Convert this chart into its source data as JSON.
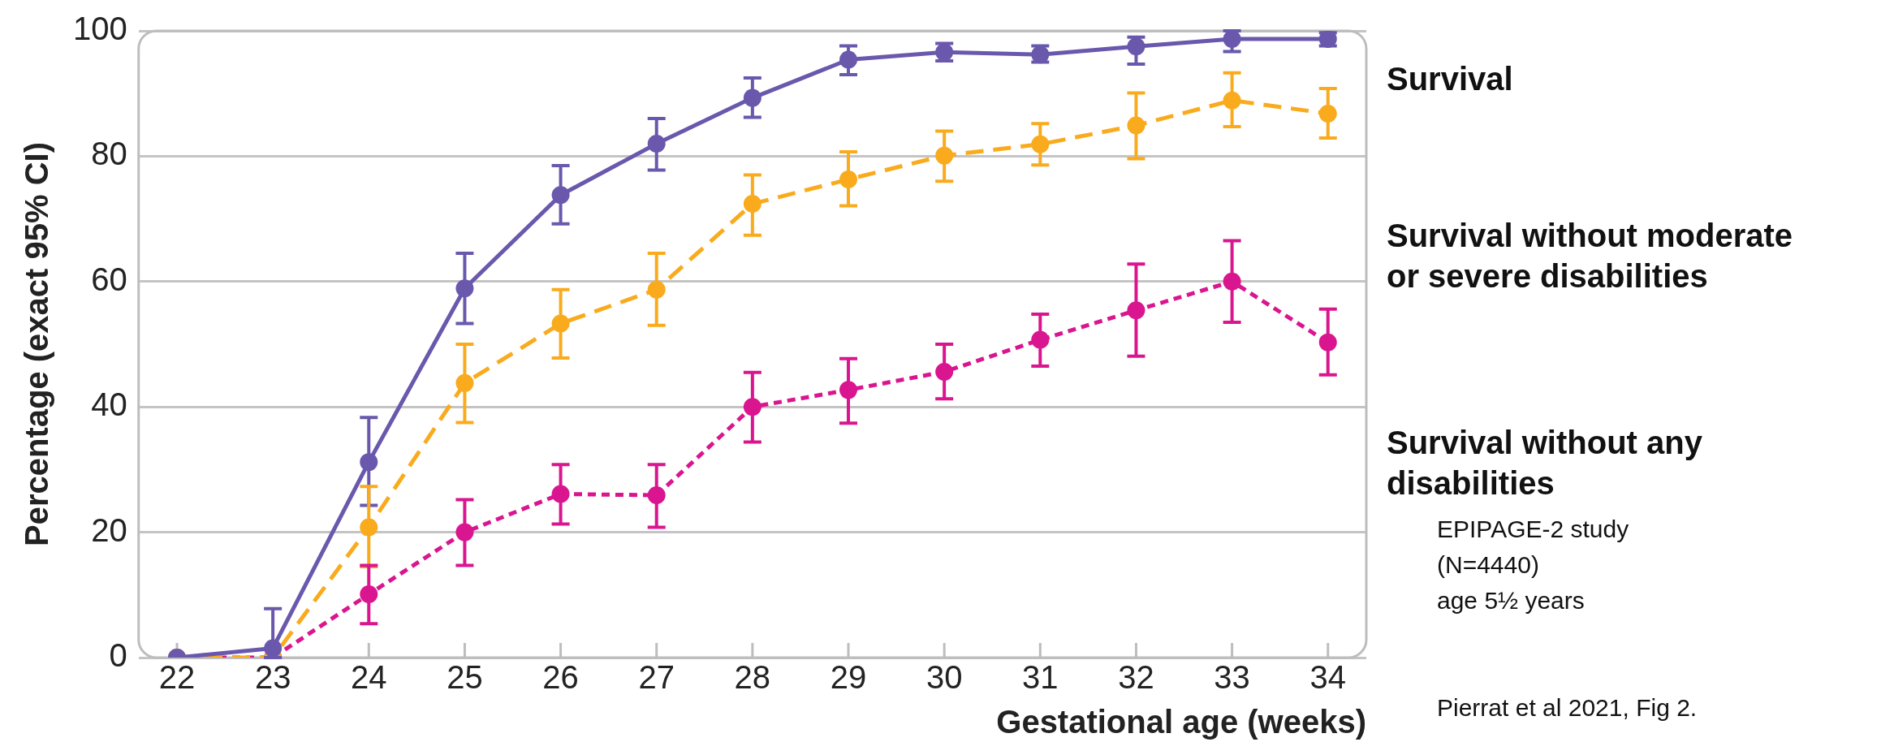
{
  "chart_data": {
    "type": "line",
    "xlabel": "Gestational age (weeks)",
    "ylabel": "Percentage (exact 95% CI)",
    "x": [
      22,
      23,
      24,
      25,
      26,
      27,
      28,
      29,
      30,
      31,
      32,
      33,
      34
    ],
    "xlim": [
      21.6,
      34.4
    ],
    "xticks": [
      22,
      23,
      24,
      25,
      26,
      27,
      28,
      29,
      30,
      31,
      32,
      33,
      34
    ],
    "ylim": [
      0,
      100
    ],
    "yticks": [
      0,
      20,
      40,
      60,
      80,
      100
    ],
    "grid": "y",
    "legend": false,
    "marker": "circle",
    "series": [
      {
        "name": "Survival",
        "color": "#6a58ad",
        "line_style": "solid",
        "values": [
          0,
          1.5,
          31.2,
          58.9,
          73.8,
          82,
          89.3,
          95.4,
          96.6,
          96.2,
          97.5,
          98.7,
          98.7
        ],
        "errors": [
          null,
          [
            0,
            7.8
          ],
          [
            24.3,
            38.3
          ],
          [
            53.3,
            64.5
          ],
          [
            69.2,
            78.5
          ],
          [
            77.8,
            86
          ],
          [
            86.2,
            92.5
          ],
          [
            93,
            97.6
          ],
          [
            95.2,
            98
          ],
          [
            95,
            97.6
          ],
          [
            94.7,
            99
          ],
          [
            96.7,
            100
          ],
          [
            97.6,
            99.7
          ]
        ]
      },
      {
        "name": "Survival without moderate or severe disabilities",
        "color": "#f9ab1d",
        "line_style": "dashed",
        "values": [
          0,
          0,
          20.8,
          43.8,
          53.3,
          58.7,
          72.4,
          76.3,
          80.1,
          81.9,
          84.9,
          88.9,
          86.8
        ],
        "errors": [
          null,
          null,
          [
            14.5,
            27.3
          ],
          [
            37.5,
            50
          ],
          [
            47.8,
            58.7
          ],
          [
            53,
            64.5
          ],
          [
            67.4,
            77
          ],
          [
            72.1,
            80.7
          ],
          [
            76,
            84
          ],
          [
            78.6,
            85.2
          ],
          [
            79.6,
            90.1
          ],
          [
            84.7,
            93.3
          ],
          [
            82.9,
            90.8
          ]
        ]
      },
      {
        "name": "Survival without any disabilities",
        "color": "#d9168f",
        "line_style": "dotted",
        "values": [
          0,
          0,
          10.1,
          20,
          26.1,
          25.9,
          40,
          42.7,
          45.6,
          50.7,
          55.4,
          60,
          50.3
        ],
        "errors": [
          null,
          null,
          [
            5.4,
            14.7
          ],
          [
            14.7,
            25.2
          ],
          [
            21.3,
            30.8
          ],
          [
            20.8,
            30.8
          ],
          [
            34.4,
            45.5
          ],
          [
            37.4,
            47.7
          ],
          [
            41.3,
            50
          ],
          [
            46.5,
            54.8
          ],
          [
            48.1,
            62.8
          ],
          [
            53.5,
            66.5
          ],
          [
            45.1,
            55.6
          ]
        ]
      }
    ],
    "annotations": [
      "EPIPAGE-2 study\n(N=4440)\nage 5½ years",
      "Pierrat et al 2021, Fig 2."
    ]
  }
}
